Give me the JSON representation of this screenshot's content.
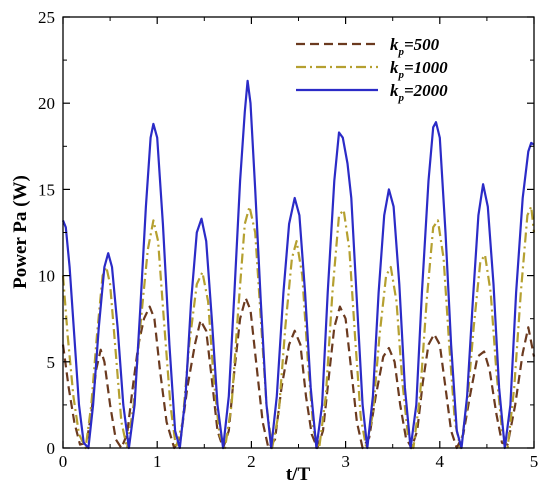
{
  "chart_data": {
    "type": "line",
    "title": "",
    "xlabel": "t/T",
    "ylabel": "Power Pa (W)",
    "xlim": [
      0,
      5
    ],
    "ylim": [
      0,
      25
    ],
    "x_ticks": [
      0,
      1,
      2,
      3,
      4,
      5
    ],
    "x_tick_labels": [
      "0",
      "1",
      "2",
      "3",
      "4",
      "5"
    ],
    "y_ticks": [
      0,
      5,
      10,
      15,
      20,
      25
    ],
    "y_tick_labels": [
      "0",
      "5",
      "10",
      "15",
      "20",
      "25"
    ],
    "grid": false,
    "legend_position": "top-right",
    "legend": {
      "prefix": "k",
      "subscript": "p",
      "entries": [
        "=500",
        "=1000",
        "=2000"
      ]
    },
    "series": [
      {
        "name": "kp=500",
        "color": "#6b3a1f",
        "dash": "dashed",
        "points": [
          [
            0,
            6.0
          ],
          [
            0.06,
            3.5
          ],
          [
            0.12,
            1.5
          ],
          [
            0.18,
            0.2
          ],
          [
            0.25,
            0.3
          ],
          [
            0.3,
            2.0
          ],
          [
            0.35,
            4.5
          ],
          [
            0.4,
            5.7
          ],
          [
            0.44,
            5.0
          ],
          [
            0.5,
            2.5
          ],
          [
            0.56,
            0.5
          ],
          [
            0.62,
            0.0
          ],
          [
            0.68,
            0.8
          ],
          [
            0.74,
            3.5
          ],
          [
            0.8,
            6.0
          ],
          [
            0.86,
            7.5
          ],
          [
            0.92,
            8.2
          ],
          [
            0.97,
            7.5
          ],
          [
            1.03,
            4.5
          ],
          [
            1.1,
            1.5
          ],
          [
            1.18,
            0.0
          ],
          [
            1.25,
            0.6
          ],
          [
            1.32,
            3.5
          ],
          [
            1.4,
            6.0
          ],
          [
            1.46,
            7.4
          ],
          [
            1.52,
            6.8
          ],
          [
            1.58,
            4.0
          ],
          [
            1.64,
            1.0
          ],
          [
            1.7,
            0.0
          ],
          [
            1.76,
            1.0
          ],
          [
            1.82,
            4.5
          ],
          [
            1.88,
            7.5
          ],
          [
            1.94,
            8.7
          ],
          [
            1.99,
            8.0
          ],
          [
            2.05,
            5.0
          ],
          [
            2.12,
            1.5
          ],
          [
            2.18,
            0.0
          ],
          [
            2.25,
            0.5
          ],
          [
            2.32,
            3.5
          ],
          [
            2.4,
            6.0
          ],
          [
            2.46,
            6.8
          ],
          [
            2.52,
            6.0
          ],
          [
            2.58,
            3.0
          ],
          [
            2.64,
            0.8
          ],
          [
            2.7,
            0.0
          ],
          [
            2.76,
            1.0
          ],
          [
            2.82,
            4.0
          ],
          [
            2.88,
            7.0
          ],
          [
            2.94,
            8.2
          ],
          [
            3.0,
            7.5
          ],
          [
            3.06,
            4.5
          ],
          [
            3.12,
            1.5
          ],
          [
            3.18,
            0.0
          ],
          [
            3.25,
            0.6
          ],
          [
            3.32,
            3.0
          ],
          [
            3.4,
            5.3
          ],
          [
            3.46,
            5.8
          ],
          [
            3.52,
            5.0
          ],
          [
            3.58,
            2.5
          ],
          [
            3.64,
            0.6
          ],
          [
            3.7,
            0.0
          ],
          [
            3.76,
            1.0
          ],
          [
            3.82,
            3.8
          ],
          [
            3.88,
            6.0
          ],
          [
            3.94,
            6.6
          ],
          [
            4.0,
            6.0
          ],
          [
            4.06,
            3.5
          ],
          [
            4.12,
            1.0
          ],
          [
            4.18,
            0.0
          ],
          [
            4.25,
            0.8
          ],
          [
            4.32,
            3.0
          ],
          [
            4.4,
            5.3
          ],
          [
            4.47,
            5.6
          ],
          [
            4.53,
            4.5
          ],
          [
            4.6,
            2.0
          ],
          [
            4.66,
            0.3
          ],
          [
            4.72,
            0.2
          ],
          [
            4.8,
            2.5
          ],
          [
            4.88,
            5.5
          ],
          [
            4.94,
            7.0
          ],
          [
            5.0,
            5.3
          ]
        ]
      },
      {
        "name": "kp=1000",
        "color": "#b5a030",
        "dash": "dashdot",
        "points": [
          [
            0,
            10.0
          ],
          [
            0.05,
            6.5
          ],
          [
            0.11,
            3.0
          ],
          [
            0.17,
            0.8
          ],
          [
            0.24,
            0.0
          ],
          [
            0.3,
            2.5
          ],
          [
            0.36,
            6.5
          ],
          [
            0.42,
            10.0
          ],
          [
            0.46,
            10.5
          ],
          [
            0.5,
            9.5
          ],
          [
            0.56,
            5.5
          ],
          [
            0.62,
            1.5
          ],
          [
            0.68,
            0.0
          ],
          [
            0.75,
            2.5
          ],
          [
            0.82,
            7.0
          ],
          [
            0.9,
            11.5
          ],
          [
            0.96,
            13.2
          ],
          [
            1.01,
            12.0
          ],
          [
            1.07,
            7.5
          ],
          [
            1.14,
            2.5
          ],
          [
            1.2,
            0.0
          ],
          [
            1.27,
            1.5
          ],
          [
            1.34,
            6.0
          ],
          [
            1.42,
            9.5
          ],
          [
            1.48,
            10.2
          ],
          [
            1.54,
            8.5
          ],
          [
            1.6,
            4.0
          ],
          [
            1.66,
            0.8
          ],
          [
            1.72,
            0.0
          ],
          [
            1.79,
            2.5
          ],
          [
            1.86,
            8.0
          ],
          [
            1.93,
            13.0
          ],
          [
            1.98,
            14.0
          ],
          [
            2.04,
            12.5
          ],
          [
            2.1,
            7.5
          ],
          [
            2.16,
            2.5
          ],
          [
            2.22,
            0.0
          ],
          [
            2.29,
            2.0
          ],
          [
            2.36,
            7.0
          ],
          [
            2.43,
            11.0
          ],
          [
            2.48,
            12.0
          ],
          [
            2.54,
            10.0
          ],
          [
            2.6,
            5.0
          ],
          [
            2.66,
            1.0
          ],
          [
            2.72,
            0.0
          ],
          [
            2.79,
            3.0
          ],
          [
            2.86,
            9.0
          ],
          [
            2.93,
            13.5
          ],
          [
            2.98,
            13.8
          ],
          [
            3.04,
            11.5
          ],
          [
            3.1,
            6.5
          ],
          [
            3.16,
            1.8
          ],
          [
            3.22,
            0.0
          ],
          [
            3.29,
            2.0
          ],
          [
            3.36,
            6.5
          ],
          [
            3.43,
            10.0
          ],
          [
            3.48,
            10.5
          ],
          [
            3.54,
            8.5
          ],
          [
            3.6,
            4.0
          ],
          [
            3.66,
            0.8
          ],
          [
            3.72,
            0.0
          ],
          [
            3.79,
            3.0
          ],
          [
            3.86,
            8.5
          ],
          [
            3.93,
            12.8
          ],
          [
            3.98,
            13.2
          ],
          [
            4.04,
            11.0
          ],
          [
            4.1,
            6.0
          ],
          [
            4.16,
            1.5
          ],
          [
            4.22,
            0.0
          ],
          [
            4.29,
            2.5
          ],
          [
            4.36,
            7.0
          ],
          [
            4.43,
            10.8
          ],
          [
            4.48,
            11.2
          ],
          [
            4.54,
            9.0
          ],
          [
            4.6,
            4.5
          ],
          [
            4.66,
            1.0
          ],
          [
            4.72,
            0.0
          ],
          [
            4.79,
            3.5
          ],
          [
            4.86,
            9.0
          ],
          [
            4.93,
            13.5
          ],
          [
            4.97,
            14.0
          ],
          [
            5.0,
            12.5
          ]
        ]
      },
      {
        "name": "kp=2000",
        "color": "#2b2bc7",
        "dash": "solid",
        "points": [
          [
            0,
            13.2
          ],
          [
            0.03,
            12.8
          ],
          [
            0.07,
            10.5
          ],
          [
            0.12,
            6.5
          ],
          [
            0.17,
            2.5
          ],
          [
            0.22,
            0.3
          ],
          [
            0.27,
            0.0
          ],
          [
            0.32,
            2.5
          ],
          [
            0.38,
            7.0
          ],
          [
            0.44,
            10.5
          ],
          [
            0.48,
            11.3
          ],
          [
            0.52,
            10.5
          ],
          [
            0.58,
            7.0
          ],
          [
            0.64,
            2.5
          ],
          [
            0.7,
            0.0
          ],
          [
            0.76,
            2.5
          ],
          [
            0.82,
            8.0
          ],
          [
            0.88,
            14.0
          ],
          [
            0.93,
            18.0
          ],
          [
            0.96,
            18.8
          ],
          [
            1.0,
            18.0
          ],
          [
            1.06,
            13.0
          ],
          [
            1.13,
            6.0
          ],
          [
            1.19,
            1.0
          ],
          [
            1.24,
            0.0
          ],
          [
            1.3,
            3.0
          ],
          [
            1.36,
            8.5
          ],
          [
            1.42,
            12.5
          ],
          [
            1.47,
            13.3
          ],
          [
            1.52,
            12.0
          ],
          [
            1.58,
            7.5
          ],
          [
            1.64,
            2.5
          ],
          [
            1.7,
            0.0
          ],
          [
            1.76,
            3.0
          ],
          [
            1.82,
            9.0
          ],
          [
            1.88,
            15.5
          ],
          [
            1.93,
            19.5
          ],
          [
            1.96,
            21.3
          ],
          [
            1.99,
            20.0
          ],
          [
            2.04,
            15.0
          ],
          [
            2.1,
            8.5
          ],
          [
            2.16,
            2.5
          ],
          [
            2.21,
            0.0
          ],
          [
            2.27,
            3.0
          ],
          [
            2.34,
            9.0
          ],
          [
            2.4,
            13.0
          ],
          [
            2.46,
            14.5
          ],
          [
            2.51,
            13.5
          ],
          [
            2.57,
            9.0
          ],
          [
            2.63,
            3.5
          ],
          [
            2.69,
            0.0
          ],
          [
            2.75,
            2.5
          ],
          [
            2.81,
            9.0
          ],
          [
            2.88,
            15.5
          ],
          [
            2.93,
            18.3
          ],
          [
            2.97,
            18.0
          ],
          [
            3.02,
            16.5
          ],
          [
            3.06,
            14.5
          ],
          [
            3.12,
            8.5
          ],
          [
            3.18,
            2.5
          ],
          [
            3.23,
            0.0
          ],
          [
            3.29,
            3.0
          ],
          [
            3.35,
            9.0
          ],
          [
            3.41,
            13.5
          ],
          [
            3.46,
            15.0
          ],
          [
            3.51,
            14.0
          ],
          [
            3.57,
            9.5
          ],
          [
            3.63,
            3.5
          ],
          [
            3.69,
            0.0
          ],
          [
            3.75,
            2.5
          ],
          [
            3.81,
            9.0
          ],
          [
            3.88,
            15.5
          ],
          [
            3.93,
            18.6
          ],
          [
            3.96,
            18.9
          ],
          [
            4.0,
            18.0
          ],
          [
            4.06,
            12.5
          ],
          [
            4.12,
            6.0
          ],
          [
            4.18,
            1.0
          ],
          [
            4.23,
            0.0
          ],
          [
            4.29,
            3.0
          ],
          [
            4.35,
            8.5
          ],
          [
            4.41,
            13.5
          ],
          [
            4.46,
            15.3
          ],
          [
            4.51,
            14.0
          ],
          [
            4.57,
            9.5
          ],
          [
            4.63,
            3.5
          ],
          [
            4.69,
            0.0
          ],
          [
            4.75,
            2.5
          ],
          [
            4.81,
            9.0
          ],
          [
            4.88,
            14.5
          ],
          [
            4.94,
            17.2
          ],
          [
            4.97,
            17.7
          ],
          [
            5.0,
            17.6
          ]
        ]
      }
    ]
  }
}
